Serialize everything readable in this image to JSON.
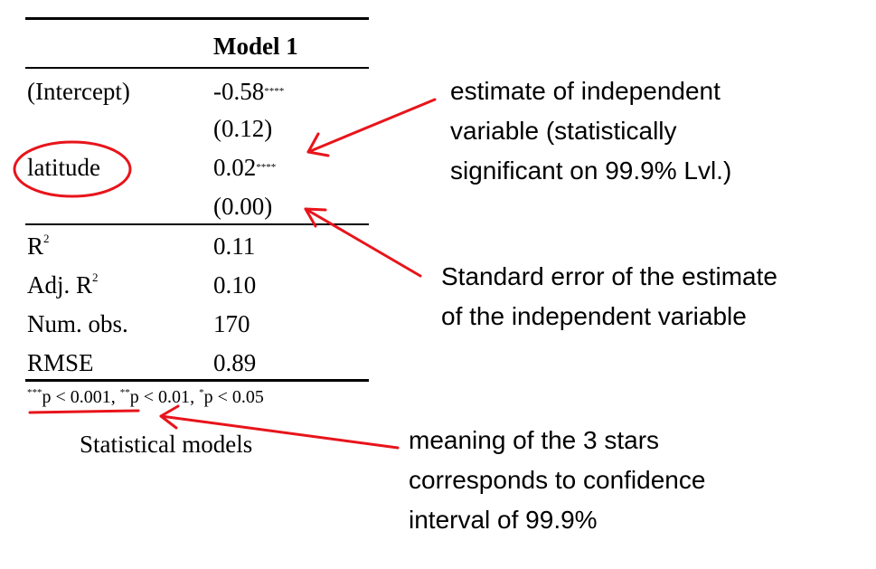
{
  "table": {
    "model_header": "Model 1",
    "rows": [
      {
        "label": "(Intercept)",
        "value": "-0.58",
        "stars": "****"
      },
      {
        "label": "",
        "value": "(0.12)",
        "stars": ""
      },
      {
        "label": "latitude",
        "value": "0.02",
        "stars": "****"
      },
      {
        "label": "",
        "value": "(0.00)",
        "stars": ""
      }
    ],
    "stats": [
      {
        "label": "R",
        "sup": "2",
        "value": "0.11"
      },
      {
        "label": "Adj. R",
        "sup": "2",
        "value": "0.10"
      },
      {
        "label": "Num. obs.",
        "sup": "",
        "value": "170"
      },
      {
        "label": "RMSE",
        "sup": "",
        "value": "0.89"
      }
    ],
    "footnote": {
      "s1": "***",
      "t1": "p < 0.001",
      "s2": "**",
      "t2": "p < 0.01",
      "s3": "*",
      "t3": "p < 0.05",
      "sep": ", "
    },
    "caption": "Statistical models"
  },
  "annotations": {
    "estimate": [
      "estimate of independent",
      "variable (statistically",
      "significant on 99.9% Lvl.)"
    ],
    "std_error": [
      "Standard error of the estimate",
      "of the independent variable"
    ],
    "stars": [
      "meaning of the 3 stars",
      "corresponds to confidence",
      "interval of 99.9%"
    ]
  },
  "colors": {
    "annotation_red": "#e8141b",
    "text": "#000000"
  }
}
